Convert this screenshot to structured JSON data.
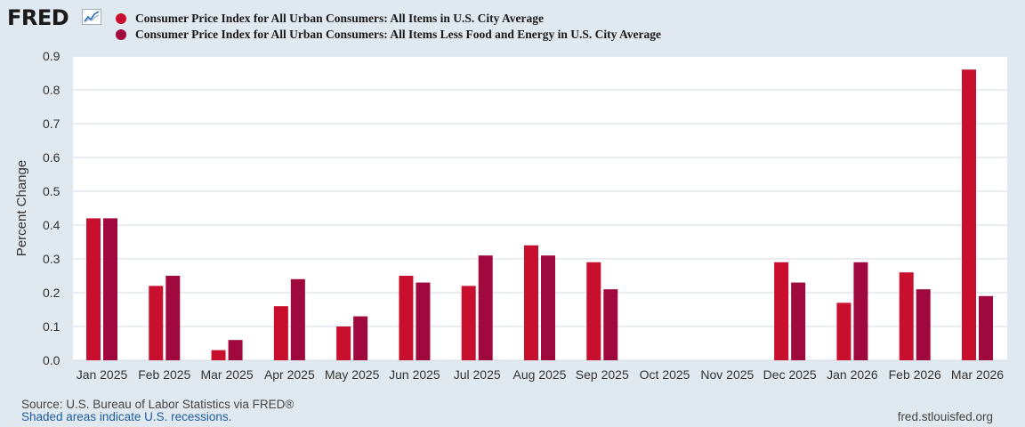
{
  "header": {
    "logo_text": "FRED",
    "logo_icon": "trend-line-icon"
  },
  "legend": [
    {
      "label": "Consumer Price Index for All Urban Consumers: All Items in U.S. City Average",
      "color": "#c8102e"
    },
    {
      "label": "Consumer Price Index for All Urban Consumers: All Items Less Food and Energy in U.S. City Average",
      "color": "#a0093e"
    }
  ],
  "footer": {
    "source": "Source: U.S. Bureau of Labor Statistics via FRED®",
    "recession_note": "Shaded areas indicate U.S. recessions.",
    "site": "fred.stlouisfed.org"
  },
  "chart_data": {
    "type": "bar",
    "title": "",
    "xlabel": "",
    "ylabel": "Percent Change",
    "ylim": [
      0,
      0.9
    ],
    "yticks": [
      "0.0",
      "0.1",
      "0.2",
      "0.3",
      "0.4",
      "0.5",
      "0.6",
      "0.7",
      "0.8",
      "0.9"
    ],
    "grid": true,
    "legend_position": "top",
    "categories": [
      "Jan 2025",
      "Feb 2025",
      "Mar 2025",
      "Apr 2025",
      "May 2025",
      "Jun 2025",
      "Jul 2025",
      "Aug 2025",
      "Sep 2025",
      "Oct 2025",
      "Nov 2025",
      "Dec 2025",
      "Jan 2026",
      "Feb 2026",
      "Mar 2026"
    ],
    "series": [
      {
        "name": "Consumer Price Index for All Urban Consumers: All Items in U.S. City Average",
        "color": "#c8102e",
        "values": [
          0.42,
          0.22,
          0.03,
          0.16,
          0.1,
          0.25,
          0.22,
          0.34,
          0.29,
          null,
          null,
          0.29,
          0.17,
          0.26,
          0.86
        ]
      },
      {
        "name": "Consumer Price Index for All Urban Consumers: All Items Less Food and Energy in U.S. City Average",
        "color": "#a0093e",
        "values": [
          0.42,
          0.25,
          0.06,
          0.24,
          0.13,
          0.23,
          0.31,
          0.31,
          0.21,
          null,
          null,
          0.23,
          0.29,
          0.21,
          0.19
        ]
      }
    ]
  }
}
